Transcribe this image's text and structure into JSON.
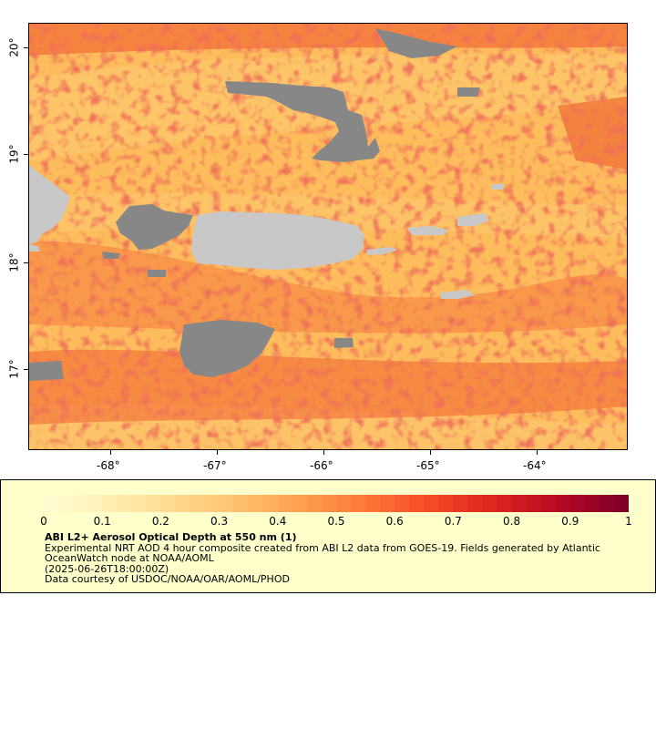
{
  "map": {
    "lon_ticks": [
      "-68°",
      "-67°",
      "-66°",
      "-65°",
      "-64°"
    ],
    "lat_ticks": [
      "20°",
      "19°",
      "18°",
      "17°"
    ],
    "colors": {
      "land": "#c8c8c8",
      "no_data": "#878787",
      "background": "#fdbd5c"
    }
  },
  "legend": {
    "ticks": [
      "0",
      "0.1",
      "0.2",
      "0.3",
      "0.4",
      "0.5",
      "0.6",
      "0.7",
      "0.8",
      "0.9",
      "1"
    ],
    "colors": [
      "#fffbd0",
      "#fff4bd",
      "#fee9a8",
      "#fedc94",
      "#fecf80",
      "#fdbf6c",
      "#fdab5a",
      "#fd9648",
      "#fc7e3b",
      "#fb6530",
      "#f44a26",
      "#e6321f",
      "#d5201f",
      "#bf0f24",
      "#a00426",
      "#800026"
    ],
    "title": "ABI L2+ Aerosol Optical Depth at 550 nm (1)",
    "description": "Experimental NRT AOD 4 hour composite created from ABI L2 data from GOES-19. Fields generated by Atlantic OceanWatch node at NOAA/AOML",
    "timestamp": "(2025-06-26T18:00:00Z)",
    "credit": "Data courtesy of USDOC/NOAA/OAR/AOML/PHOD"
  }
}
